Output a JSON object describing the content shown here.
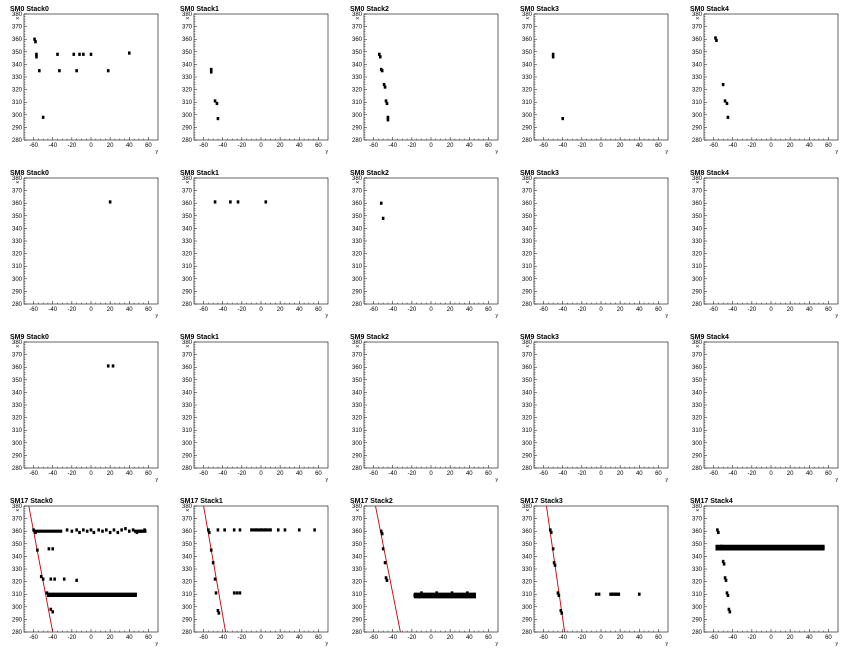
{
  "axes": {
    "xlim": [
      -70,
      70
    ],
    "ylim": [
      280,
      380
    ],
    "xticks": [
      -60,
      -40,
      -20,
      0,
      20,
      40,
      60
    ],
    "yticks": [
      280,
      290,
      300,
      310,
      320,
      330,
      340,
      350,
      360,
      370,
      380
    ],
    "xlabel": "y",
    "ylabel": "x"
  },
  "colors": {
    "points": "#000000",
    "line": "#cc0000",
    "frame": "#000000"
  },
  "chart_data": [
    {
      "type": "scatter",
      "title": "SM0 Stack0",
      "points": [
        [
          -59,
          360
        ],
        [
          -58,
          358
        ],
        [
          -57,
          348
        ],
        [
          -57,
          346
        ],
        [
          -54,
          335
        ],
        [
          -50,
          298
        ],
        [
          -35,
          348
        ],
        [
          -33,
          335
        ],
        [
          -18,
          348
        ],
        [
          -15,
          335
        ],
        [
          -12,
          348
        ],
        [
          -8,
          348
        ],
        [
          0,
          348
        ],
        [
          18,
          335
        ],
        [
          40,
          349
        ]
      ]
    },
    {
      "type": "scatter",
      "title": "SM0 Stack1",
      "points": [
        [
          -52,
          336
        ],
        [
          -52,
          334
        ],
        [
          -48,
          311
        ],
        [
          -46,
          309
        ],
        [
          -45,
          297
        ]
      ]
    },
    {
      "type": "scatter",
      "title": "SM0 Stack2",
      "points": [
        [
          -54,
          348
        ],
        [
          -53,
          346
        ],
        [
          -52,
          336
        ],
        [
          -51,
          335
        ],
        [
          -49,
          324
        ],
        [
          -48,
          322
        ],
        [
          -47,
          311
        ],
        [
          -46,
          309
        ],
        [
          -45,
          298
        ],
        [
          -45,
          296
        ]
      ]
    },
    {
      "type": "scatter",
      "title": "SM0 Stack3",
      "points": [
        [
          -50,
          348
        ],
        [
          -50,
          346
        ],
        [
          -40,
          297
        ]
      ]
    },
    {
      "type": "scatter",
      "title": "SM0 Stack4",
      "points": [
        [
          -58,
          361
        ],
        [
          -57,
          359
        ],
        [
          -50,
          324
        ],
        [
          -48,
          311
        ],
        [
          -46,
          309
        ],
        [
          -45,
          298
        ]
      ]
    },
    {
      "type": "scatter",
      "title": "SM8 Stack0",
      "points": [
        [
          20,
          361
        ]
      ]
    },
    {
      "type": "scatter",
      "title": "SM8 Stack1",
      "points": [
        [
          -48,
          361
        ],
        [
          -32,
          361
        ],
        [
          -24,
          361
        ],
        [
          5,
          361
        ]
      ]
    },
    {
      "type": "scatter",
      "title": "SM8 Stack2",
      "points": [
        [
          -52,
          360
        ],
        [
          -50,
          348
        ]
      ]
    },
    {
      "type": "scatter",
      "title": "SM8 Stack3",
      "points": []
    },
    {
      "type": "scatter",
      "title": "SM8 Stack4",
      "points": []
    },
    {
      "type": "scatter",
      "title": "SM9 Stack0",
      "points": [
        [
          18,
          361
        ],
        [
          23,
          361
        ]
      ]
    },
    {
      "type": "scatter",
      "title": "SM9 Stack1",
      "points": []
    },
    {
      "type": "scatter",
      "title": "SM9 Stack2",
      "points": []
    },
    {
      "type": "scatter",
      "title": "SM9 Stack3",
      "points": []
    },
    {
      "type": "scatter",
      "title": "SM9 Stack4",
      "points": []
    },
    {
      "type": "scatter",
      "title": "SM17 Stack0",
      "line": [
        [
          -65,
          380
        ],
        [
          -40,
          280
        ]
      ],
      "points": [
        [
          -60,
          361
        ],
        [
          -58,
          359
        ],
        [
          -56,
          345
        ],
        [
          -52,
          324
        ],
        [
          -50,
          322
        ],
        [
          -46,
          311
        ],
        [
          -44,
          309
        ],
        [
          -42,
          298
        ],
        [
          -40,
          296
        ],
        [
          -44,
          346
        ],
        [
          -40,
          346
        ],
        [
          -42,
          322
        ],
        [
          -38,
          322
        ],
        [
          -28,
          322
        ],
        [
          -15,
          321
        ],
        [
          -25,
          361
        ],
        [
          -20,
          360
        ],
        [
          -15,
          361
        ],
        [
          -12,
          359
        ],
        [
          -8,
          361
        ],
        [
          -4,
          360
        ],
        [
          0,
          361
        ],
        [
          3,
          359
        ],
        [
          8,
          361
        ],
        [
          12,
          360
        ],
        [
          16,
          361
        ],
        [
          20,
          359
        ],
        [
          24,
          361
        ],
        [
          28,
          359
        ],
        [
          32,
          361
        ],
        [
          36,
          362
        ],
        [
          40,
          360
        ],
        [
          44,
          361
        ],
        [
          48,
          359
        ],
        [
          52,
          360
        ],
        [
          56,
          361
        ]
      ],
      "segments": [
        [
          -60,
          360,
          -30,
          360
        ],
        [
          -46,
          310,
          48,
          310
        ],
        [
          -46,
          309,
          48,
          309
        ],
        [
          45,
          360,
          58,
          360
        ]
      ]
    },
    {
      "type": "scatter",
      "title": "SM17 Stack1",
      "line": [
        [
          -60,
          380
        ],
        [
          -37,
          280
        ]
      ],
      "points": [
        [
          -55,
          361
        ],
        [
          -54,
          359
        ],
        [
          -52,
          345
        ],
        [
          -50,
          335
        ],
        [
          -48,
          322
        ],
        [
          -47,
          311
        ],
        [
          -45,
          297
        ],
        [
          -44,
          295
        ],
        [
          -45,
          361
        ],
        [
          -38,
          361
        ],
        [
          -28,
          361
        ],
        [
          -22,
          361
        ],
        [
          -10,
          361
        ],
        [
          -5,
          361
        ],
        [
          0,
          361
        ],
        [
          5,
          361
        ],
        [
          10,
          361
        ],
        [
          18,
          361
        ],
        [
          25,
          361
        ],
        [
          40,
          361
        ],
        [
          56,
          361
        ],
        [
          -28,
          311
        ],
        [
          -25,
          311
        ],
        [
          -22,
          311
        ]
      ],
      "segments": [
        [
          -10,
          361,
          10,
          361
        ]
      ]
    },
    {
      "type": "scatter",
      "title": "SM17 Stack2",
      "line": [
        [
          -58,
          380
        ],
        [
          -32,
          280
        ]
      ],
      "points": [
        [
          -52,
          360
        ],
        [
          -51,
          358
        ],
        [
          -50,
          346
        ],
        [
          -48,
          335
        ],
        [
          -47,
          323
        ],
        [
          -46,
          321
        ],
        [
          -17,
          309
        ],
        [
          -10,
          311
        ],
        [
          -2,
          309
        ],
        [
          6,
          311
        ],
        [
          14,
          309
        ],
        [
          22,
          311
        ],
        [
          30,
          309
        ],
        [
          38,
          311
        ]
      ],
      "segments": [
        [
          -18,
          310,
          47,
          310
        ],
        [
          -18,
          308,
          47,
          308
        ]
      ]
    },
    {
      "type": "scatter",
      "title": "SM17 Stack3",
      "line": [
        [
          -57,
          380
        ],
        [
          -38,
          280
        ]
      ],
      "points": [
        [
          -53,
          361
        ],
        [
          -52,
          359
        ],
        [
          -50,
          346
        ],
        [
          -49,
          335
        ],
        [
          -48,
          333
        ],
        [
          -45,
          311
        ],
        [
          -44,
          309
        ],
        [
          -42,
          297
        ],
        [
          -41,
          295
        ],
        [
          -5,
          310
        ],
        [
          -2,
          310
        ],
        [
          10,
          310
        ],
        [
          12,
          310
        ],
        [
          15,
          310
        ],
        [
          18,
          310
        ],
        [
          40,
          310
        ]
      ],
      "segments": [
        [
          10,
          310,
          20,
          310
        ]
      ]
    },
    {
      "type": "scatter",
      "title": "SM17 Stack4",
      "points": [
        [
          -56,
          361
        ],
        [
          -55,
          359
        ],
        [
          -52,
          348
        ],
        [
          -50,
          336
        ],
        [
          -49,
          334
        ],
        [
          -48,
          323
        ],
        [
          -47,
          321
        ],
        [
          -46,
          311
        ],
        [
          -45,
          309
        ],
        [
          -44,
          298
        ],
        [
          -43,
          296
        ]
      ],
      "segments": [
        [
          -58,
          348,
          56,
          348
        ],
        [
          -58,
          346,
          56,
          346
        ],
        [
          -57,
          347,
          56,
          347
        ]
      ]
    }
  ]
}
